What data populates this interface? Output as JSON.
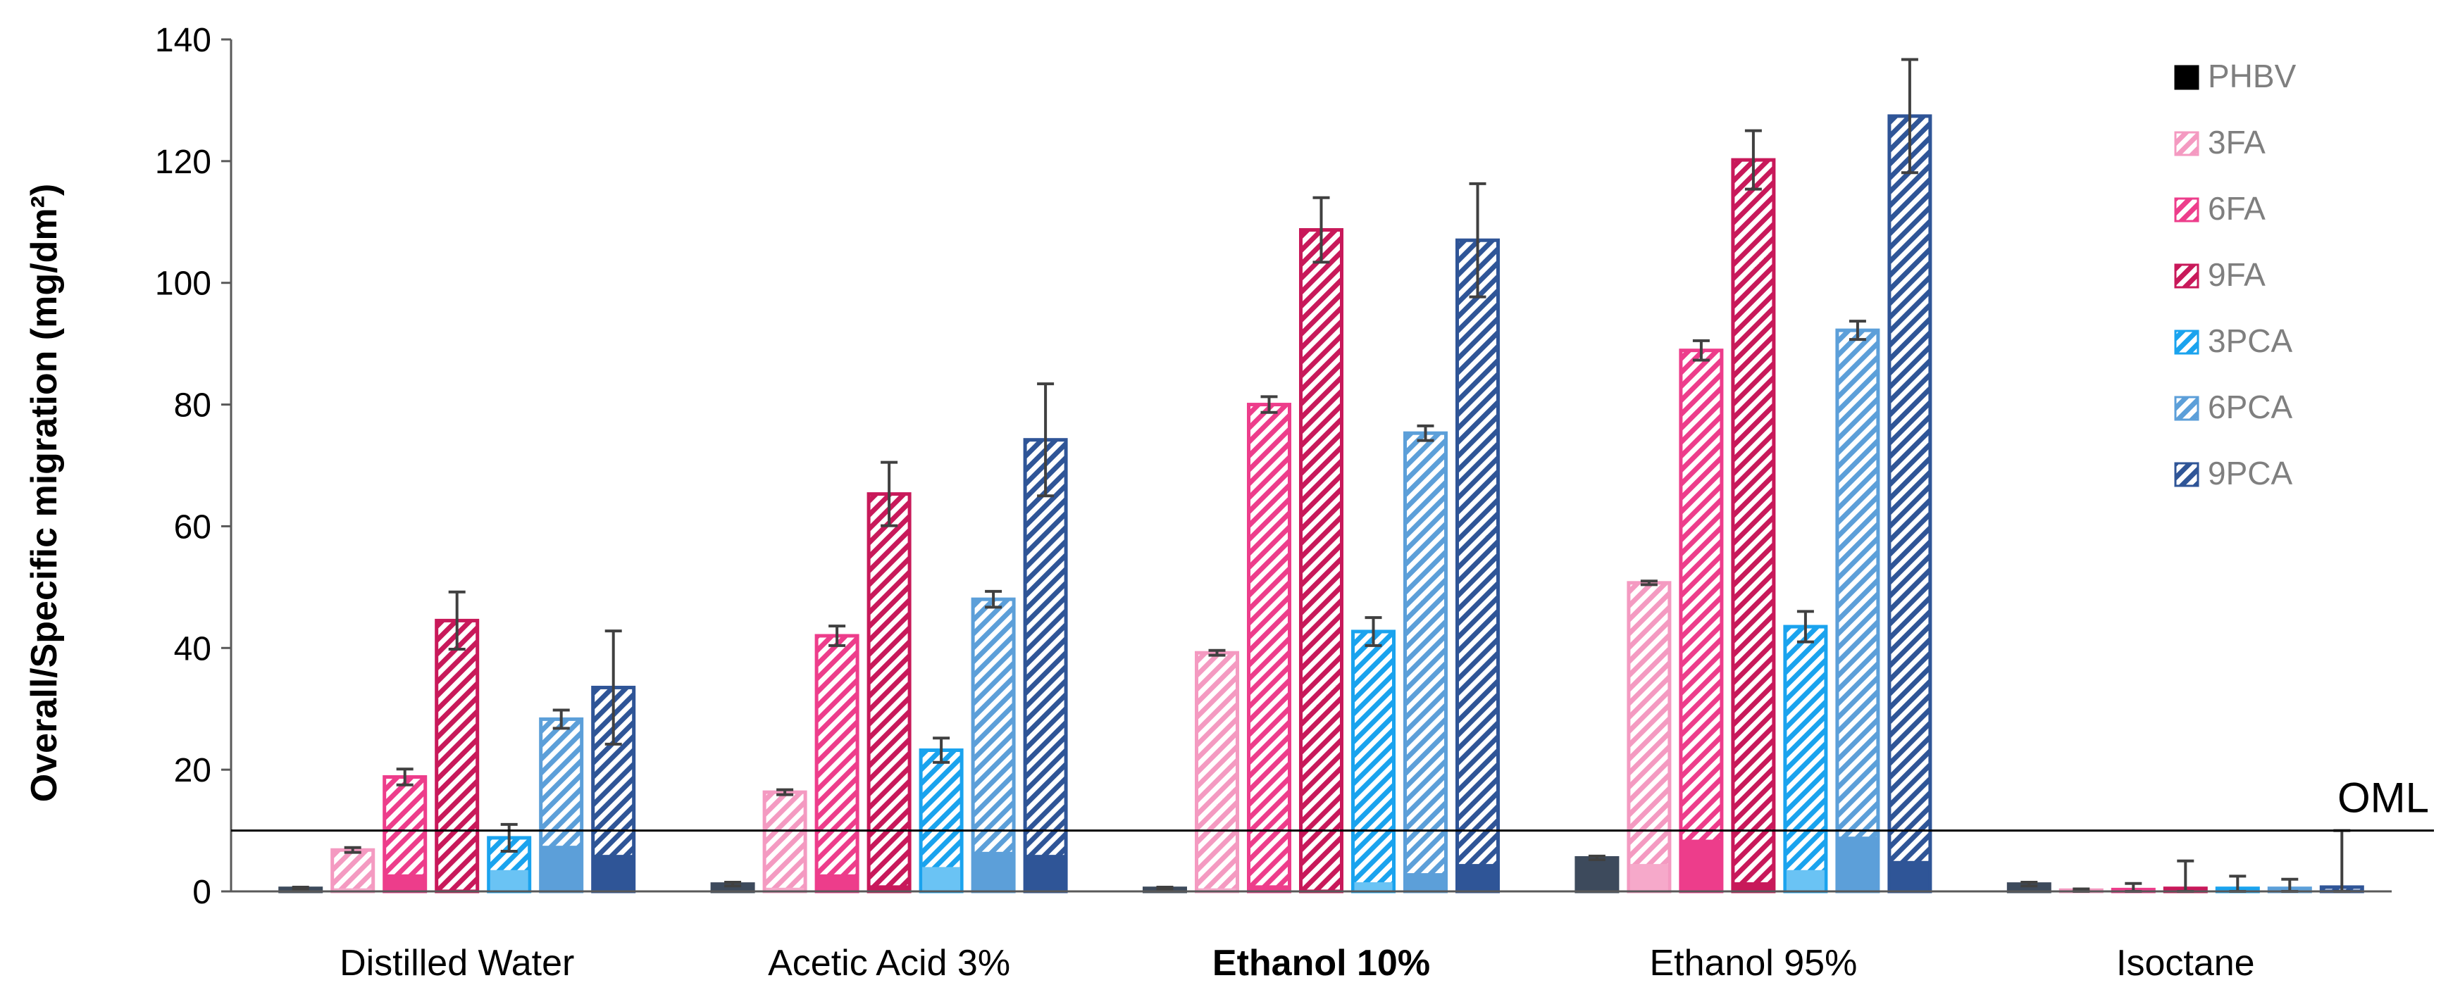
{
  "chart_data": {
    "type": "bar",
    "title": "",
    "xlabel": "",
    "ylabel": "Overall/Specific migration (mg/dm²)",
    "ylim": [
      0,
      140
    ],
    "yticks": [
      0,
      20,
      40,
      60,
      80,
      100,
      120,
      140
    ],
    "categories": [
      "Distilled Water",
      "Acetic Acid 3%",
      "Ethanol 10%",
      "Ethanol 95%",
      "Isoctane"
    ],
    "bold_categories": [
      "Ethanol 10%"
    ],
    "reference_line": {
      "label": "OML",
      "value": 10
    },
    "legend_position": "top-right",
    "series": [
      {
        "name": "PHBV",
        "color": "#3d4a5c",
        "pattern": "solid",
        "values": [
          0.5,
          1.2,
          0.5,
          5.5,
          1.2
        ],
        "errors": [
          0.2,
          0.3,
          0.2,
          0.3,
          0.3
        ],
        "specific": [
          null,
          null,
          null,
          null,
          null
        ]
      },
      {
        "name": "3FA",
        "color": "#f49ac1",
        "pattern": "hatch",
        "values": [
          6.8,
          16.3,
          39.2,
          50.7,
          0.2
        ],
        "errors": [
          0.4,
          0.4,
          0.4,
          0.3,
          0.2
        ],
        "specific": [
          0.5,
          0.6,
          0.5,
          4.5,
          null
        ]
      },
      {
        "name": "6FA",
        "color": "#ed3d8b",
        "pattern": "hatch",
        "values": [
          18.8,
          42,
          80,
          88.9,
          0.3
        ],
        "errors": [
          1.3,
          1.6,
          1.3,
          1.6,
          1.0
        ],
        "specific": [
          2.8,
          2.8,
          1.0,
          8.5,
          null
        ]
      },
      {
        "name": "9FA",
        "color": "#c8195a",
        "pattern": "hatch",
        "values": [
          44.5,
          65.3,
          108.7,
          120.2,
          0.5
        ],
        "errors": [
          4.7,
          5.2,
          5.3,
          4.8,
          4.5
        ],
        "specific": [
          0.3,
          1.0,
          0.3,
          1.5,
          null
        ]
      },
      {
        "name": "3PCA",
        "color": "#1aa3ee",
        "pattern": "hatch",
        "values": [
          8.8,
          23.2,
          42.7,
          43.5,
          0.5
        ],
        "errors": [
          2.2,
          2.0,
          2.3,
          2.5,
          2.0
        ],
        "specific": [
          3.5,
          4.0,
          1.5,
          3.5,
          null
        ]
      },
      {
        "name": "6PCA",
        "color": "#5c9fd9",
        "pattern": "hatch",
        "values": [
          28.3,
          48,
          75.3,
          92.2,
          0.5
        ],
        "errors": [
          1.5,
          1.3,
          1.2,
          1.5,
          1.5
        ],
        "specific": [
          7.5,
          6.5,
          3.0,
          9.0,
          null
        ]
      },
      {
        "name": "9PCA",
        "color": "#2f5597",
        "pattern": "hatch",
        "values": [
          33.5,
          74.2,
          107,
          127.4,
          0.7
        ],
        "errors": [
          9.3,
          9.2,
          9.3,
          9.3,
          9.3
        ],
        "specific": [
          6.0,
          6.0,
          4.5,
          5.0,
          null
        ]
      }
    ]
  }
}
